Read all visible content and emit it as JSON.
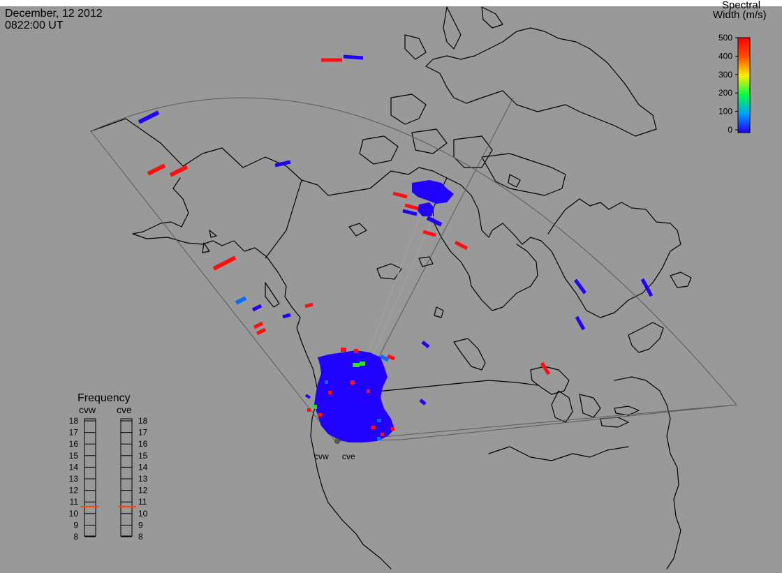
{
  "header": {
    "date": "December, 12 2012",
    "time": "0822:00 UT"
  },
  "colorbar": {
    "title_line1": "Spectral",
    "title_line2": "Width (m/s)",
    "ticks": [
      "0",
      "100",
      "200",
      "300",
      "400",
      "500"
    ],
    "range": [
      0,
      500
    ]
  },
  "radars": {
    "west_label": "cvw",
    "east_label": "cve"
  },
  "frequency_panel": {
    "title": "Frequency",
    "west_label": "cvw",
    "east_label": "cve",
    "ticks": [
      "18",
      "17",
      "16",
      "15",
      "14",
      "13",
      "12",
      "11",
      "10",
      "9",
      "8"
    ],
    "range_mhz": [
      8,
      18
    ],
    "west_value_mhz": 10.6,
    "east_value_mhz": 10.6,
    "marker_color": "#ff4400"
  },
  "colors": {
    "background": "#999999",
    "scatter_blue": "#2000ff",
    "scatter_red": "#ff1010",
    "scatter_light_blue": "#0a6cff",
    "scatter_green": "#33dd22"
  }
}
